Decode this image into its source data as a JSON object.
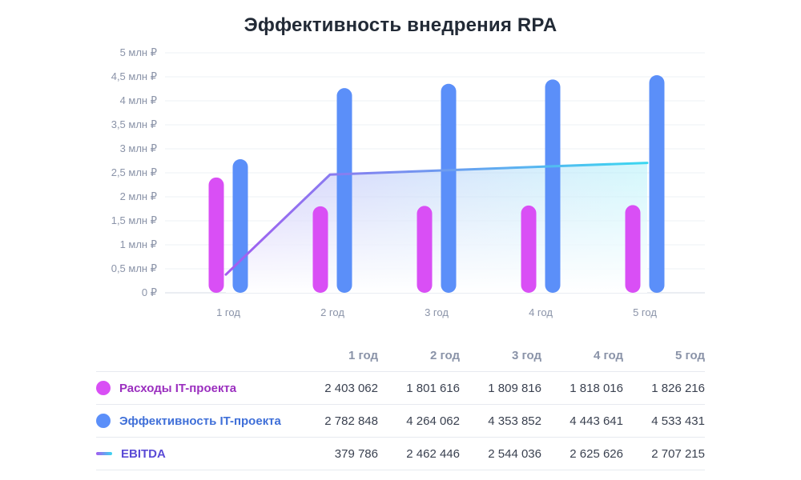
{
  "chart_data": {
    "type": "bar",
    "title": "Эффективность внедрения RPA",
    "categories": [
      "1 год",
      "2 год",
      "3 год",
      "4 год",
      "5 год"
    ],
    "y_ticks": [
      "0 ₽",
      "0,5 млн ₽",
      "1 млн ₽",
      "1,5 млн ₽",
      "2 млн ₽",
      "2,5 млн ₽",
      "3 млн ₽",
      "3,5 млн ₽",
      "4 млн ₽",
      "4,5 млн ₽",
      "5 млн ₽"
    ],
    "ylim": [
      0,
      5000000
    ],
    "series": [
      {
        "name": "Расходы IT-проекта",
        "kind": "bar",
        "color": "#d94ff5",
        "values": [
          2403062,
          1801616,
          1809816,
          1818016,
          1826216
        ]
      },
      {
        "name": "Эффективность IT-проекта",
        "kind": "bar",
        "color": "#5b8ff9",
        "values": [
          2782848,
          4264062,
          4353852,
          4443641,
          4533431
        ]
      },
      {
        "name": "EBITDA",
        "kind": "line",
        "color_start": "#a45cf0",
        "color_end": "#3ad7f0",
        "values": [
          379786,
          2462446,
          2544036,
          2625626,
          2707215
        ]
      }
    ]
  },
  "table": {
    "headers": [
      "1 год",
      "2 год",
      "3 год",
      "4 год",
      "5 год"
    ],
    "rows": [
      {
        "label": "Расходы IT-проекта",
        "label_color": "#9b2fbf",
        "marker": "dot",
        "marker_color": "#d94ff5",
        "cells": [
          "2 403 062",
          "1 801 616",
          "1 809 816",
          "1 818 016",
          "1 826 216"
        ]
      },
      {
        "label": "Эффективность IT-проекта",
        "label_color": "#3f6fd8",
        "marker": "dot",
        "marker_color": "#5b8ff9",
        "cells": [
          "2 782 848",
          "4 264 062",
          "4 353 852",
          "4 443 641",
          "4 533 431"
        ]
      },
      {
        "label": "EBITDA",
        "label_color": "#5b4bd6",
        "marker": "line",
        "marker_color": "#7a6cf0",
        "cells": [
          "379 786",
          "2 462 446",
          "2 544 036",
          "2 625 626",
          "2 707 215"
        ]
      }
    ]
  }
}
